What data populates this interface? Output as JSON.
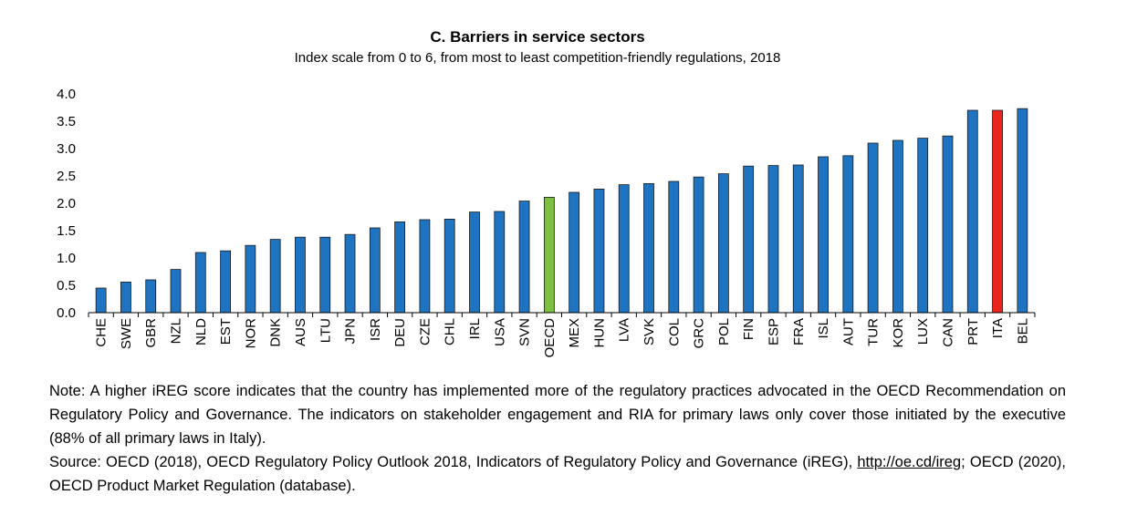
{
  "chart_data": {
    "type": "bar",
    "title": "C. Barriers in service sectors",
    "subtitle": "Index scale from 0 to 6, from most to least competition-friendly regulations, 2018",
    "xlabel": "",
    "ylabel": "",
    "ylim": [
      0,
      4
    ],
    "yticks": [
      "0.0",
      "0.5",
      "1.0",
      "1.5",
      "2.0",
      "2.5",
      "3.0",
      "3.5",
      "4.0"
    ],
    "grid": false,
    "categories": [
      "CHE",
      "SWE",
      "GBR",
      "NZL",
      "NLD",
      "EST",
      "NOR",
      "DNK",
      "AUS",
      "LTU",
      "JPN",
      "ISR",
      "DEU",
      "CZE",
      "CHL",
      "IRL",
      "USA",
      "SVN",
      "OECD",
      "MEX",
      "HUN",
      "LVA",
      "SVK",
      "COL",
      "GRC",
      "POL",
      "FIN",
      "ESP",
      "FRA",
      "ISL",
      "AUT",
      "TUR",
      "KOR",
      "LUX",
      "CAN",
      "PRT",
      "ITA",
      "BEL"
    ],
    "values": [
      0.45,
      0.56,
      0.6,
      0.79,
      1.1,
      1.13,
      1.23,
      1.34,
      1.38,
      1.38,
      1.43,
      1.55,
      1.66,
      1.7,
      1.71,
      1.84,
      1.85,
      2.04,
      2.11,
      2.2,
      2.26,
      2.34,
      2.36,
      2.4,
      2.48,
      2.54,
      2.68,
      2.69,
      2.7,
      2.85,
      2.87,
      3.1,
      3.15,
      3.19,
      3.23,
      3.7,
      3.7,
      3.73
    ],
    "colors": {
      "default": "#1e74c0",
      "OECD": "#7dbf3f",
      "ITA": "#e8261b",
      "stroke": "#1a1a1a"
    }
  },
  "footnote": {
    "note": "Note: A higher iREG score indicates that the country has implemented more of the regulatory practices advocated in the OECD Recommendation on Regulatory Policy and Governance. The indicators on stakeholder engagement and RIA for primary laws only cover those initiated by the executive (88% of all primary laws in Italy).",
    "source_prefix": "Source: OECD (2018), OECD Regulatory Policy Outlook 2018, Indicators of Regulatory Policy and Governance (iREG), ",
    "source_link": "http://oe.cd/ireg",
    "source_suffix": "; OECD (2020), OECD Product Market Regulation (database)."
  }
}
